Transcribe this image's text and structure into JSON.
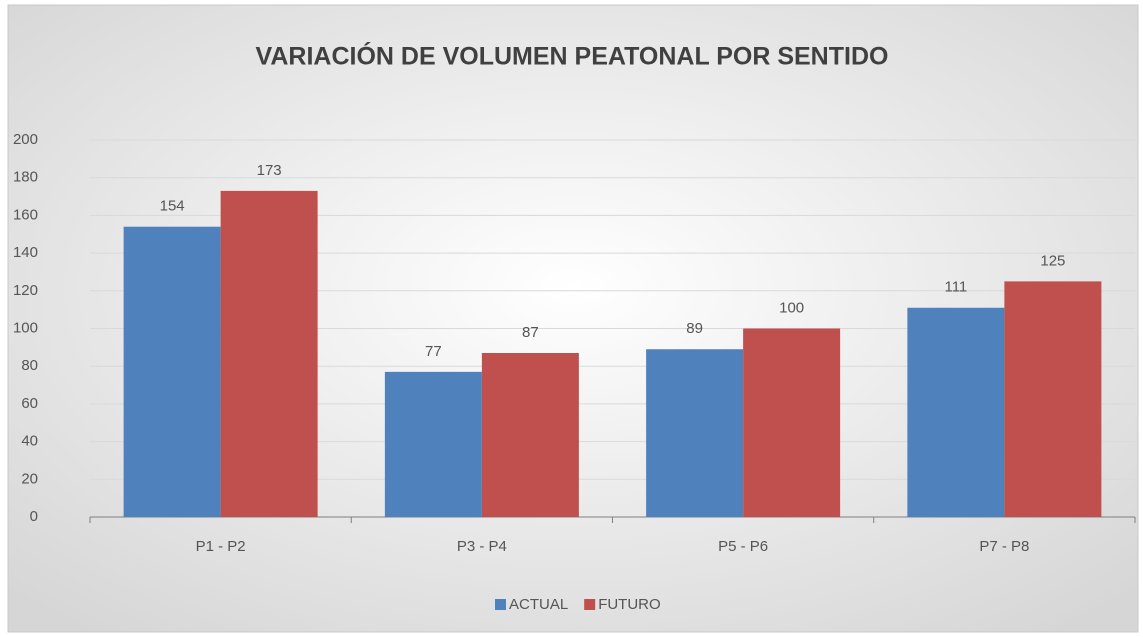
{
  "chart_data": {
    "type": "bar",
    "title": "VARIACIÓN DE VOLUMEN PEATONAL POR SENTIDO",
    "categories": [
      "P1 - P2",
      "P3 - P4",
      "P5 - P6",
      "P7 - P8"
    ],
    "series": [
      {
        "name": "ACTUAL",
        "color": "#4f81bd",
        "values": [
          154,
          77,
          89,
          111
        ]
      },
      {
        "name": "FUTURO",
        "color": "#c0504d",
        "values": [
          173,
          87,
          100,
          125
        ]
      }
    ],
    "ylim": [
      0,
      200
    ],
    "yticks": [
      0,
      20,
      40,
      60,
      80,
      100,
      120,
      140,
      160,
      180,
      200
    ],
    "grid": true,
    "legend": "bottom"
  }
}
